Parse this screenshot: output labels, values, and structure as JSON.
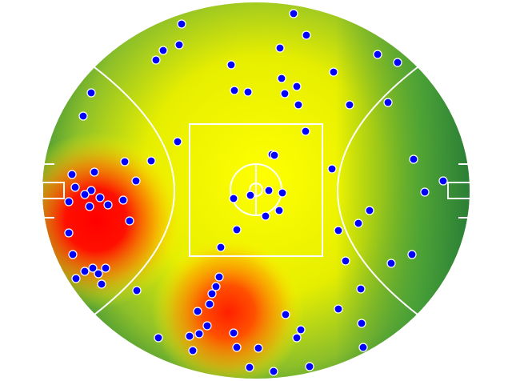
{
  "chart_data": {
    "type": "scatter",
    "color": "#0000ff",
    "xlim": [
      0,
      535
    ],
    "ylim": [
      0,
      470
    ],
    "x": [
      314,
      174,
      330,
      151,
      171,
      142,
      297,
      236,
      419,
      444,
      364,
      299,
      318,
      240,
      257,
      303,
      320,
      384,
      432,
      61,
      51,
      329,
      169,
      287,
      290,
      103,
      136,
      464,
      362,
      501,
      37,
      65,
      117,
      41,
      61,
      53,
      72,
      33,
      59,
      82,
      101,
      478,
      239,
      260,
      283,
      300,
      279,
      296,
      409,
      395,
      109,
      243,
      370,
      33,
      223,
      38,
      379,
      436,
      462,
      63,
      53,
      79,
      70,
      42,
      74,
      221,
      217,
      212,
      209,
      194,
      118,
      398,
      370,
      304,
      399,
      206,
      323,
      318,
      145,
      184,
      196,
      239,
      243,
      270,
      188,
      401,
      259,
      289,
      334
    ],
    "y": [
      14,
      27,
      41,
      60,
      53,
      72,
      57,
      78,
      65,
      75,
      87,
      95,
      105,
      110,
      112,
      114,
      128,
      128,
      125,
      113,
      142,
      161,
      174,
      190,
      191,
      199,
      198,
      196,
      208,
      223,
      215,
      212,
      223,
      231,
      235,
      240,
      244,
      249,
      255,
      253,
      247,
      237,
      245,
      241,
      235,
      238,
      267,
      260,
      260,
      276,
      273,
      284,
      285,
      288,
      306,
      315,
      323,
      326,
      315,
      332,
      336,
      332,
      339,
      345,
      352,
      343,
      355,
      364,
      377,
      386,
      360,
      358,
      383,
      390,
      401,
      404,
      409,
      419,
      419,
      417,
      414,
      413,
      431,
      432,
      435,
      431,
      456,
      461,
      455
    ]
  }
}
